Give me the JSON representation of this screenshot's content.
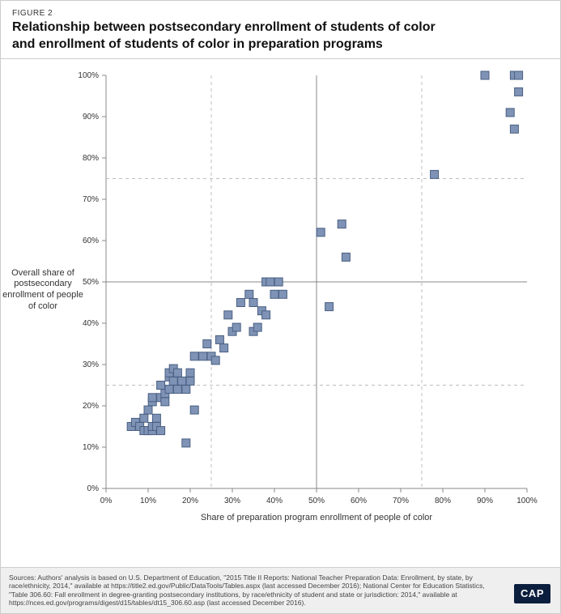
{
  "figure_label": "FIGURE 2",
  "title_line1": "Relationship between postsecondary enrollment of students of color",
  "title_line2": "and enrollment of students of color in preparation programs",
  "y_axis_title": "Overall share of postsecondary enrollment of people of color",
  "x_axis_title": "Share of preparation program enrollment of people of color",
  "sources_text": "Sources: Authors' analysis is based on U.S. Department of Education, \"2015 Title II Reports: National Teacher Preparation Data: Enrollment, by state, by race/ethnicity, 2014,\" available at https://title2.ed.gov/Public/DataTools/Tables.aspx (last accessed December 2016); National Center for Education Statistics, \"Table 306.60: Fall enrollment in degree-granting postsecondary institutions, by race/ethnicity of student and state or jurisdiction: 2014,\" available at https://nces.ed.gov/programs/digest/d15/tables/dt15_306.60.asp (last accessed December 2016).",
  "logo_text": "CAP",
  "chart": {
    "type": "scatter",
    "xlim": [
      0,
      100
    ],
    "ylim": [
      0,
      100
    ],
    "xtick_step": 10,
    "ytick_step": 10,
    "tick_suffix": "%",
    "marker_size": 10,
    "marker_fill": "#7e93b5",
    "marker_stroke": "#4a5f82",
    "marker_stroke_width": 1,
    "axis_color": "#888888",
    "solid_ref_color": "#888888",
    "dashed_ref_color": "#bdbdbd",
    "background_color": "#ffffff",
    "tick_font_size": 10,
    "solid_vline_x": 50,
    "solid_hline_y": 50,
    "dashed_vlines": [
      25,
      75
    ],
    "dashed_hlines": [
      25,
      75
    ],
    "points": [
      [
        6,
        15
      ],
      [
        7,
        16
      ],
      [
        8,
        15
      ],
      [
        9,
        14
      ],
      [
        9,
        17
      ],
      [
        10,
        14
      ],
      [
        10,
        19
      ],
      [
        11,
        14
      ],
      [
        11,
        15
      ],
      [
        11,
        21
      ],
      [
        11,
        22
      ],
      [
        12,
        15
      ],
      [
        12,
        17
      ],
      [
        13,
        14
      ],
      [
        13,
        22
      ],
      [
        13,
        25
      ],
      [
        14,
        21
      ],
      [
        14,
        23
      ],
      [
        15,
        24
      ],
      [
        15,
        27
      ],
      [
        15,
        28
      ],
      [
        16,
        26
      ],
      [
        16,
        29
      ],
      [
        17,
        24
      ],
      [
        17,
        28
      ],
      [
        18,
        26
      ],
      [
        19,
        24
      ],
      [
        19,
        11
      ],
      [
        20,
        26
      ],
      [
        20,
        28
      ],
      [
        21,
        32
      ],
      [
        21,
        19
      ],
      [
        23,
        32
      ],
      [
        24,
        35
      ],
      [
        25,
        32
      ],
      [
        26,
        31
      ],
      [
        27,
        36
      ],
      [
        28,
        34
      ],
      [
        29,
        42
      ],
      [
        30,
        38
      ],
      [
        31,
        39
      ],
      [
        32,
        45
      ],
      [
        34,
        47
      ],
      [
        35,
        38
      ],
      [
        35,
        45
      ],
      [
        36,
        39
      ],
      [
        37,
        43
      ],
      [
        38,
        50
      ],
      [
        38,
        42
      ],
      [
        39,
        50
      ],
      [
        40,
        47
      ],
      [
        41,
        50
      ],
      [
        42,
        47
      ],
      [
        51,
        62
      ],
      [
        53,
        44
      ],
      [
        56,
        64
      ],
      [
        57,
        56
      ],
      [
        78,
        76
      ],
      [
        90,
        100
      ],
      [
        96,
        91
      ],
      [
        97,
        87
      ],
      [
        97,
        100
      ],
      [
        98,
        96
      ],
      [
        98,
        100
      ]
    ]
  }
}
